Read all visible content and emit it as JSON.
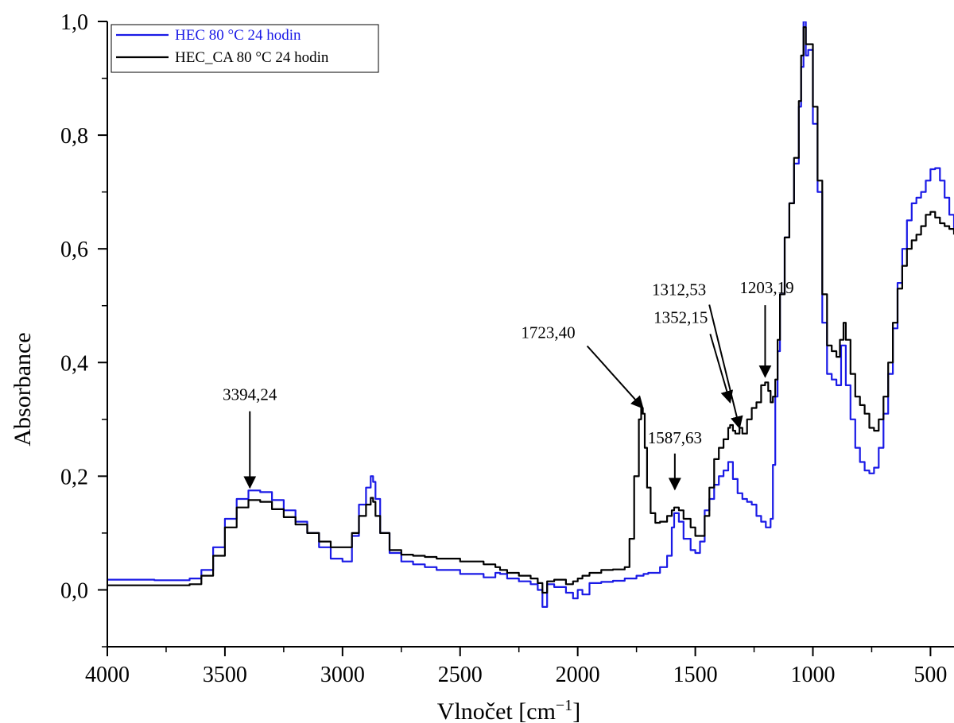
{
  "chart_data": {
    "type": "line",
    "title": "",
    "xlabel": "Vlnočet [cm",
    "xlabel_sup": "−1",
    "xlabel_end": "]",
    "ylabel": "Absorbance",
    "xlim": [
      4000,
      400
    ],
    "ylim": [
      -0.1,
      1.0
    ],
    "x_reversed": true,
    "x_ticks": [
      4000,
      3500,
      3000,
      2500,
      2000,
      1500,
      1000,
      500
    ],
    "x_tick_labels": [
      "4000",
      "3500",
      "3000",
      "2500",
      "2000",
      "1500",
      "1000",
      "500"
    ],
    "y_ticks": [
      0.0,
      0.2,
      0.4,
      0.6,
      0.8,
      1.0
    ],
    "y_tick_labels": [
      "0,0",
      "0,2",
      "0,4",
      "0,6",
      "0,8",
      "1,0"
    ],
    "grid": false,
    "legend_position": "top-left",
    "series": [
      {
        "name": "HEC 80 °C 24 hodin",
        "color": "#1a1ae6",
        "x": [
          4000,
          3800,
          3700,
          3650,
          3600,
          3550,
          3500,
          3450,
          3400,
          3350,
          3300,
          3250,
          3200,
          3150,
          3100,
          3050,
          3000,
          2960,
          2930,
          2900,
          2880,
          2870,
          2860,
          2840,
          2800,
          2750,
          2700,
          2650,
          2600,
          2500,
          2400,
          2350,
          2330,
          2300,
          2250,
          2200,
          2170,
          2150,
          2130,
          2100,
          2050,
          2020,
          2000,
          1980,
          1950,
          1900,
          1850,
          1800,
          1750,
          1720,
          1700,
          1650,
          1620,
          1600,
          1590,
          1570,
          1550,
          1520,
          1500,
          1480,
          1460,
          1440,
          1420,
          1400,
          1380,
          1360,
          1340,
          1320,
          1300,
          1280,
          1260,
          1240,
          1220,
          1200,
          1180,
          1170,
          1160,
          1150,
          1140,
          1120,
          1100,
          1080,
          1060,
          1050,
          1040,
          1030,
          1020,
          1000,
          980,
          960,
          940,
          920,
          900,
          880,
          860,
          840,
          820,
          800,
          780,
          760,
          740,
          720,
          700,
          680,
          660,
          640,
          620,
          600,
          580,
          560,
          540,
          520,
          500,
          480,
          460,
          440,
          420,
          400
        ],
        "y": [
          0.018,
          0.017,
          0.017,
          0.02,
          0.035,
          0.075,
          0.125,
          0.16,
          0.175,
          0.172,
          0.158,
          0.14,
          0.12,
          0.1,
          0.075,
          0.055,
          0.05,
          0.095,
          0.15,
          0.18,
          0.2,
          0.19,
          0.16,
          0.1,
          0.065,
          0.05,
          0.045,
          0.04,
          0.035,
          0.028,
          0.022,
          0.03,
          0.028,
          0.02,
          0.015,
          0.01,
          0.0,
          -0.03,
          0.01,
          0.005,
          -0.005,
          -0.015,
          0.0,
          -0.008,
          0.012,
          0.014,
          0.016,
          0.02,
          0.025,
          0.028,
          0.03,
          0.04,
          0.06,
          0.11,
          0.135,
          0.12,
          0.09,
          0.07,
          0.065,
          0.085,
          0.14,
          0.16,
          0.185,
          0.2,
          0.21,
          0.225,
          0.195,
          0.17,
          0.16,
          0.155,
          0.15,
          0.13,
          0.12,
          0.11,
          0.125,
          0.22,
          0.34,
          0.42,
          0.52,
          0.62,
          0.68,
          0.75,
          0.85,
          0.92,
          1.0,
          0.94,
          0.95,
          0.82,
          0.7,
          0.47,
          0.38,
          0.37,
          0.36,
          0.43,
          0.36,
          0.3,
          0.25,
          0.225,
          0.21,
          0.205,
          0.215,
          0.25,
          0.31,
          0.38,
          0.46,
          0.54,
          0.6,
          0.65,
          0.68,
          0.69,
          0.7,
          0.72,
          0.74,
          0.742,
          0.72,
          0.69,
          0.66,
          0.63
        ],
        "show_legend": true
      },
      {
        "name": "HEC_CA 80 °C 24 hodin",
        "color": "#000000",
        "x": [
          4000,
          3800,
          3700,
          3650,
          3600,
          3550,
          3500,
          3450,
          3400,
          3350,
          3300,
          3250,
          3200,
          3150,
          3100,
          3050,
          3000,
          2960,
          2930,
          2900,
          2880,
          2870,
          2860,
          2840,
          2800,
          2750,
          2700,
          2650,
          2600,
          2500,
          2400,
          2350,
          2330,
          2300,
          2250,
          2200,
          2170,
          2150,
          2130,
          2100,
          2050,
          2020,
          2000,
          1980,
          1950,
          1900,
          1850,
          1800,
          1780,
          1760,
          1740,
          1730,
          1723,
          1715,
          1705,
          1690,
          1670,
          1650,
          1620,
          1600,
          1590,
          1570,
          1550,
          1520,
          1500,
          1480,
          1460,
          1440,
          1420,
          1400,
          1380,
          1360,
          1352,
          1340,
          1330,
          1312,
          1300,
          1280,
          1260,
          1240,
          1220,
          1203,
          1190,
          1180,
          1170,
          1160,
          1150,
          1140,
          1120,
          1100,
          1080,
          1060,
          1050,
          1040,
          1030,
          1020,
          1000,
          980,
          960,
          940,
          920,
          900,
          885,
          870,
          860,
          840,
          820,
          800,
          780,
          760,
          740,
          720,
          700,
          680,
          660,
          640,
          620,
          600,
          580,
          560,
          540,
          520,
          500,
          480,
          460,
          440,
          420,
          400
        ],
        "y": [
          0.008,
          0.008,
          0.008,
          0.01,
          0.025,
          0.06,
          0.11,
          0.145,
          0.158,
          0.155,
          0.142,
          0.128,
          0.115,
          0.1,
          0.085,
          0.075,
          0.075,
          0.1,
          0.13,
          0.15,
          0.162,
          0.155,
          0.13,
          0.1,
          0.07,
          0.062,
          0.06,
          0.058,
          0.055,
          0.05,
          0.045,
          0.04,
          0.035,
          0.03,
          0.025,
          0.02,
          0.012,
          -0.005,
          0.015,
          0.018,
          0.01,
          0.015,
          0.02,
          0.025,
          0.03,
          0.035,
          0.036,
          0.04,
          0.09,
          0.2,
          0.3,
          0.32,
          0.31,
          0.25,
          0.18,
          0.135,
          0.118,
          0.12,
          0.13,
          0.14,
          0.145,
          0.14,
          0.125,
          0.11,
          0.095,
          0.095,
          0.13,
          0.18,
          0.23,
          0.25,
          0.265,
          0.285,
          0.29,
          0.28,
          0.275,
          0.285,
          0.275,
          0.3,
          0.32,
          0.33,
          0.36,
          0.365,
          0.35,
          0.33,
          0.34,
          0.37,
          0.44,
          0.52,
          0.62,
          0.68,
          0.76,
          0.86,
          0.94,
          0.99,
          0.96,
          0.96,
          0.85,
          0.72,
          0.52,
          0.43,
          0.42,
          0.41,
          0.44,
          0.47,
          0.44,
          0.38,
          0.34,
          0.325,
          0.31,
          0.285,
          0.28,
          0.3,
          0.34,
          0.4,
          0.47,
          0.53,
          0.57,
          0.6,
          0.615,
          0.625,
          0.64,
          0.66,
          0.665,
          0.655,
          0.645,
          0.64,
          0.635,
          0.625
        ],
        "show_legend": true
      }
    ],
    "annotations": [
      {
        "label": "3394,24",
        "target_x": 3394,
        "target_y": 0.18
      },
      {
        "label": "1723,40",
        "target_x": 1723,
        "target_y": 0.32
      },
      {
        "label": "1587,63",
        "target_x": 1587,
        "target_y": 0.177
      },
      {
        "label": "1352,15",
        "target_x": 1352,
        "target_y": 0.33
      },
      {
        "label": "1312,53",
        "target_x": 1312,
        "target_y": 0.285
      },
      {
        "label": "1203,19",
        "target_x": 1203,
        "target_y": 0.375
      }
    ]
  }
}
